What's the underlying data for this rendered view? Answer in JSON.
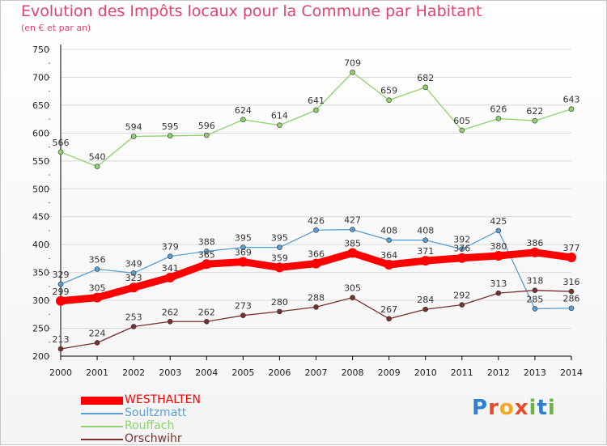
{
  "header": {
    "title": "Evolution des Impôts locaux pour la Commune par Habitant",
    "subtitle": "(en € et par an)"
  },
  "colors": {
    "title": "#e3436b",
    "grid": "#d9d9d9",
    "axis": "#000000"
  },
  "logo": {
    "letters": [
      "P",
      "r",
      "o",
      "x",
      "i",
      "t",
      "i"
    ],
    "colors": [
      "#2f7fd0",
      "#e84b26",
      "#f5a623",
      "#e84b26",
      "#6cb33f",
      "#2f7fd0",
      "#6cb33f"
    ]
  },
  "chart_data": {
    "type": "line",
    "title": "Evolution des Impôts locaux pour la Commune par Habitant",
    "subtitle": "(en € et par an)",
    "x": [
      "2000",
      "2001",
      "2002",
      "2003",
      "2004",
      "2005",
      "2006",
      "2007",
      "2008",
      "2009",
      "2010",
      "2011",
      "2012",
      "2013",
      "2014"
    ],
    "ylim": [
      200,
      750
    ],
    "yticks": [
      200,
      250,
      300,
      350,
      400,
      450,
      500,
      550,
      600,
      650,
      700,
      750
    ],
    "grid": "horizontal",
    "legend_position": "bottom-left",
    "series": [
      {
        "name": "WESTHALTEN",
        "color": "#ff0000",
        "width": 9,
        "values": [
          299,
          305,
          323,
          341,
          365,
          369,
          359,
          366,
          385,
          364,
          371,
          376,
          380,
          386,
          377
        ]
      },
      {
        "name": "Soultzmatt",
        "color": "#5a9fd4",
        "width": 1.3,
        "values": [
          329,
          356,
          349,
          379,
          388,
          395,
          395,
          426,
          427,
          408,
          408,
          392,
          425,
          285,
          286
        ]
      },
      {
        "name": "Rouffach",
        "color": "#8fd16e",
        "width": 1.3,
        "values": [
          566,
          540,
          594,
          595,
          596,
          624,
          614,
          641,
          709,
          659,
          682,
          605,
          626,
          622,
          643
        ]
      },
      {
        "name": "Orschwihr",
        "color": "#7a2f2f",
        "width": 1.3,
        "values": [
          213,
          224,
          253,
          262,
          262,
          273,
          280,
          288,
          305,
          267,
          284,
          292,
          313,
          318,
          316
        ]
      }
    ]
  }
}
